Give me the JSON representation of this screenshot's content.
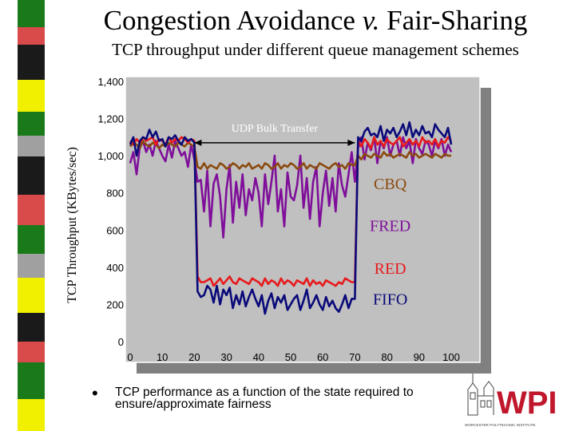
{
  "slide": {
    "title_prefix": "Congestion Avoidance ",
    "title_italic": "v.",
    "title_suffix": " Fair-Sharing",
    "subtitle": "TCP throughput under different queue management schemes",
    "bullet": "TCP performance as a function of the state required to ensure/approximate fairness"
  },
  "logo": {
    "text": "WPI",
    "tagline": "WORCESTER POLYTECHNIC INSTITUTE",
    "color": "#c0172c"
  },
  "colors": {
    "fifo": "#0a0a7a",
    "red": "#e8191c",
    "fred": "#7f0f9a",
    "cbq": "#8b4a10",
    "plot_bg": "#c0c0c0",
    "shadow": "#808080"
  },
  "chart_data": {
    "type": "line",
    "title": "",
    "xlabel": "",
    "ylabel": "TCP Throughput (KBytes/sec)",
    "xlim": [
      0,
      100
    ],
    "ylim": [
      0,
      1400
    ],
    "xticks": [
      "0",
      "10",
      "20",
      "30",
      "40",
      "50",
      "60",
      "70",
      "80",
      "90",
      "100"
    ],
    "yticks": [
      "0",
      "200",
      "400",
      "600",
      "800",
      "1,000",
      "1,200",
      "1,400"
    ],
    "grid": false,
    "annotation": {
      "text": "UDP Bulk Transfer",
      "x_start": 20,
      "x_end": 70,
      "y": 1070
    },
    "series": [
      {
        "name": "FIFO",
        "x": [
          0,
          1,
          2,
          3,
          4,
          5,
          6,
          7,
          8,
          9,
          10,
          11,
          12,
          13,
          14,
          15,
          16,
          17,
          18,
          19,
          20,
          21,
          22,
          23,
          24,
          25,
          26,
          27,
          28,
          29,
          30,
          31,
          32,
          33,
          34,
          35,
          36,
          37,
          38,
          39,
          40,
          41,
          42,
          43,
          44,
          45,
          46,
          47,
          48,
          49,
          50,
          51,
          52,
          53,
          54,
          55,
          56,
          57,
          58,
          59,
          60,
          61,
          62,
          63,
          64,
          65,
          66,
          67,
          68,
          69,
          70,
          71,
          72,
          73,
          74,
          75,
          76,
          77,
          78,
          79,
          80,
          81,
          82,
          83,
          84,
          85,
          86,
          87,
          88,
          89,
          90,
          91,
          92,
          93,
          94,
          95,
          96,
          97,
          98,
          99,
          100
        ],
        "y": [
          1060,
          1100,
          1000,
          1080,
          1100,
          1090,
          1140,
          1100,
          1130,
          1080,
          1090,
          1050,
          1100,
          1090,
          1110,
          1080,
          1060,
          1100,
          1080,
          1090,
          1070,
          270,
          240,
          250,
          300,
          280,
          210,
          300,
          200,
          280,
          250,
          290,
          180,
          250,
          200,
          270,
          190,
          240,
          280,
          230,
          190,
          250,
          150,
          220,
          260,
          180,
          240,
          210,
          250,
          170,
          200,
          230,
          250,
          170,
          220,
          280,
          180,
          210,
          250,
          200,
          170,
          240,
          190,
          220,
          180,
          160,
          200,
          250,
          180,
          230,
          230,
          1100,
          1080,
          1130,
          1150,
          1110,
          1120,
          1100,
          1160,
          1080,
          1140,
          1120,
          1150,
          1100,
          1130,
          1170,
          1110,
          1180,
          1100,
          1140,
          1110,
          1160,
          1120,
          1130,
          1100,
          1170,
          1140,
          1120,
          1100,
          1150,
          1060
        ]
      },
      {
        "name": "RED",
        "x": [
          0,
          1,
          2,
          3,
          4,
          5,
          6,
          7,
          8,
          9,
          10,
          11,
          12,
          13,
          14,
          15,
          16,
          17,
          18,
          19,
          20,
          21,
          22,
          23,
          24,
          25,
          26,
          27,
          28,
          29,
          30,
          31,
          32,
          33,
          34,
          35,
          36,
          37,
          38,
          39,
          40,
          41,
          42,
          43,
          44,
          45,
          46,
          47,
          48,
          49,
          50,
          51,
          52,
          53,
          54,
          55,
          56,
          57,
          58,
          59,
          60,
          61,
          62,
          63,
          64,
          65,
          66,
          67,
          68,
          69,
          70,
          71,
          72,
          73,
          74,
          75,
          76,
          77,
          78,
          79,
          80,
          81,
          82,
          83,
          84,
          85,
          86,
          87,
          88,
          89,
          90,
          91,
          92,
          93,
          94,
          95,
          96,
          97,
          98,
          99,
          100
        ],
        "y": [
          1080,
          1060,
          1090,
          1070,
          1100,
          1080,
          1090,
          1100,
          1060,
          1090,
          1080,
          1060,
          1100,
          1070,
          1090,
          1080,
          1100,
          1090,
          1070,
          1090,
          1080,
          350,
          320,
          320,
          330,
          340,
          300,
          320,
          340,
          310,
          330,
          350,
          320,
          310,
          340,
          330,
          320,
          310,
          340,
          330,
          320,
          300,
          340,
          310,
          330,
          320,
          300,
          340,
          310,
          330,
          320,
          300,
          330,
          320,
          310,
          340,
          300,
          330,
          310,
          320,
          300,
          330,
          320,
          310,
          300,
          320,
          310,
          340,
          330,
          320,
          320,
          1080,
          1050,
          1090,
          1070,
          1040,
          1100,
          1060,
          1080,
          1050,
          1090,
          1070,
          1060,
          1080,
          1100,
          1050,
          1070,
          1090,
          1060,
          1080,
          1050,
          1100,
          1070,
          1080,
          1060,
          1090,
          1050,
          1080,
          1070,
          1100,
          1080
        ]
      },
      {
        "name": "FRED",
        "x": [
          0,
          1,
          2,
          3,
          4,
          5,
          6,
          7,
          8,
          9,
          10,
          11,
          12,
          13,
          14,
          15,
          16,
          17,
          18,
          19,
          20,
          21,
          22,
          23,
          24,
          25,
          26,
          27,
          28,
          29,
          30,
          31,
          32,
          33,
          34,
          35,
          36,
          37,
          38,
          39,
          40,
          41,
          42,
          43,
          44,
          45,
          46,
          47,
          48,
          49,
          50,
          51,
          52,
          53,
          54,
          55,
          56,
          57,
          58,
          59,
          60,
          61,
          62,
          63,
          64,
          65,
          66,
          67,
          68,
          69,
          70,
          71,
          72,
          73,
          74,
          75,
          76,
          77,
          78,
          79,
          80,
          81,
          82,
          83,
          84,
          85,
          86,
          87,
          88,
          89,
          90,
          91,
          92,
          93,
          94,
          95,
          96,
          97,
          98,
          99,
          100
        ],
        "y": [
          960,
          1020,
          900,
          1050,
          1080,
          1020,
          1060,
          1000,
          1080,
          1040,
          1000,
          970,
          1060,
          990,
          1080,
          1040,
          1000,
          1020,
          940,
          1060,
          980,
          860,
          870,
          700,
          920,
          620,
          850,
          900,
          780,
          560,
          820,
          950,
          640,
          860,
          720,
          900,
          680,
          820,
          760,
          880,
          800,
          620,
          900,
          740,
          860,
          1000,
          700,
          820,
          620,
          910,
          780,
          760,
          840,
          1000,
          720,
          880,
          660,
          860,
          940,
          620,
          800,
          920,
          730,
          880,
          700,
          960,
          840,
          780,
          900,
          1020,
          860,
          1040,
          1100,
          980,
          1070,
          1030,
          1100,
          960,
          1080,
          1040,
          1100,
          1000,
          1060,
          1080,
          1000,
          1100,
          1040,
          1080,
          960,
          1090,
          1040,
          1010,
          1080,
          1060,
          1000,
          1080,
          1040,
          1090,
          1000,
          1060,
          1020
        ]
      },
      {
        "name": "CBQ",
        "x": [
          0,
          1,
          2,
          3,
          4,
          5,
          6,
          7,
          8,
          9,
          10,
          11,
          12,
          13,
          14,
          15,
          16,
          17,
          18,
          19,
          20,
          21,
          22,
          23,
          24,
          25,
          26,
          27,
          28,
          29,
          30,
          31,
          32,
          33,
          34,
          35,
          36,
          37,
          38,
          39,
          40,
          41,
          42,
          43,
          44,
          45,
          46,
          47,
          48,
          49,
          50,
          51,
          52,
          53,
          54,
          55,
          56,
          57,
          58,
          59,
          60,
          61,
          62,
          63,
          64,
          65,
          66,
          67,
          68,
          69,
          70,
          71,
          72,
          73,
          74,
          75,
          76,
          77,
          78,
          79,
          80,
          81,
          82,
          83,
          84,
          85,
          86,
          87,
          88,
          89,
          90,
          91,
          92,
          93,
          94,
          95,
          96,
          97,
          98,
          99,
          100
        ],
        "y": [
          1050,
          1070,
          1060,
          1040,
          1080,
          1060,
          1050,
          1070,
          1060,
          1040,
          1060,
          1050,
          1070,
          1060,
          1050,
          1070,
          1060,
          1050,
          1070,
          1060,
          1050,
          940,
          930,
          960,
          930,
          950,
          940,
          930,
          960,
          950,
          930,
          940,
          960,
          950,
          930,
          950,
          940,
          960,
          930,
          940,
          950,
          930,
          960,
          950,
          930,
          940,
          960,
          930,
          950,
          940,
          960,
          950,
          930,
          940,
          960,
          930,
          950,
          940,
          930,
          960,
          950,
          940,
          930,
          950,
          960,
          940,
          950,
          930,
          960,
          950,
          950,
          1000,
          980,
          1010,
          1000,
          990,
          1010,
          1000,
          990,
          1020,
          1000,
          1010,
          990,
          1000,
          1010,
          1000,
          990,
          1020,
          1000,
          1010,
          990,
          1000,
          1010,
          1000,
          990,
          1010,
          1000,
          990,
          1010,
          1000,
          1000
        ]
      }
    ],
    "series_labels": [
      {
        "text": "CBQ",
        "x": 81,
        "y": 820
      },
      {
        "text": "FRED",
        "x": 81,
        "y": 595
      },
      {
        "text": "RED",
        "x": 81,
        "y": 365
      },
      {
        "text": "FIFO",
        "x": 81,
        "y": 200
      }
    ]
  }
}
